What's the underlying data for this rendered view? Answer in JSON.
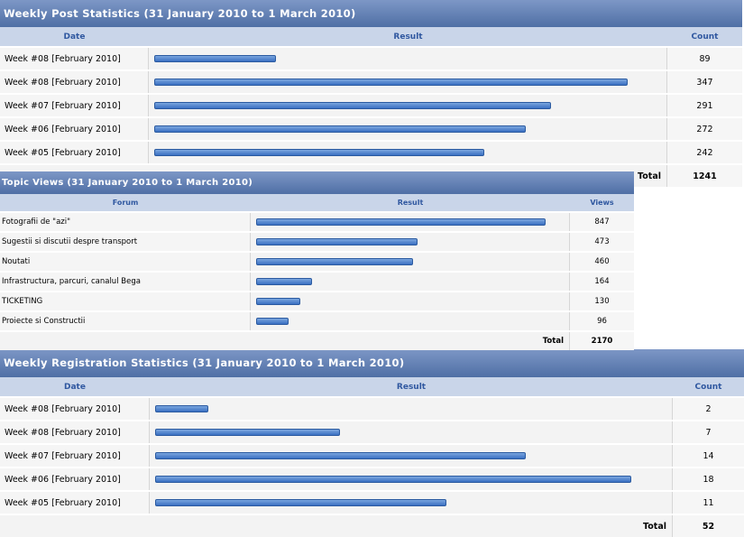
{
  "post_stats": {
    "title": "Weekly Post Statistics (31 January 2010 to 1 March 2010)",
    "col_date": "Date",
    "col_result": "Result",
    "col_count": "Count",
    "rows": [
      {
        "label": "Week #08 [February 2010]",
        "count": "89",
        "value": 89
      },
      {
        "label": "Week #08 [February 2010]",
        "count": "347",
        "value": 347
      },
      {
        "label": "Week #07 [February 2010]",
        "count": "291",
        "value": 291
      },
      {
        "label": "Week #06 [February 2010]",
        "count": "272",
        "value": 272
      },
      {
        "label": "Week #05 [February 2010]",
        "count": "242",
        "value": 242
      }
    ],
    "total_label": "Total",
    "total": "1241"
  },
  "topic_views": {
    "title": "Topic Views (31 January 2010 to 1 March 2010)",
    "col_forum": "Forum",
    "col_result": "Result",
    "col_views": "Views",
    "rows": [
      {
        "label": "Fotografii de \"azi\"",
        "count": "847",
        "value": 847
      },
      {
        "label": "Sugestii si discutii despre transport",
        "count": "473",
        "value": 473
      },
      {
        "label": "Noutati",
        "count": "460",
        "value": 460
      },
      {
        "label": "Infrastructura, parcuri, canalul Bega",
        "count": "164",
        "value": 164
      },
      {
        "label": "TICKETING",
        "count": "130",
        "value": 130
      },
      {
        "label": "Proiecte si Constructii",
        "count": "96",
        "value": 96
      }
    ],
    "total_label": "Total",
    "total": "2170"
  },
  "registration_stats": {
    "title": "Weekly Registration Statistics (31 January 2010 to 1 March 2010)",
    "col_date": "Date",
    "col_result": "Result",
    "col_count": "Count",
    "rows": [
      {
        "label": "Week #08 [February 2010]",
        "count": "2",
        "value": 2
      },
      {
        "label": "Week #08 [February 2010]",
        "count": "7",
        "value": 7
      },
      {
        "label": "Week #07 [February 2010]",
        "count": "14",
        "value": 14
      },
      {
        "label": "Week #06 [February 2010]",
        "count": "18",
        "value": 18
      },
      {
        "label": "Week #05 [February 2010]",
        "count": "11",
        "value": 11
      }
    ],
    "total_label": "Total",
    "total": "52"
  },
  "colors": {
    "header": "#5b79ae",
    "column_header_bg": "#c9d5e9",
    "column_header_text": "#3058a0",
    "bar": "#3a70c2"
  }
}
